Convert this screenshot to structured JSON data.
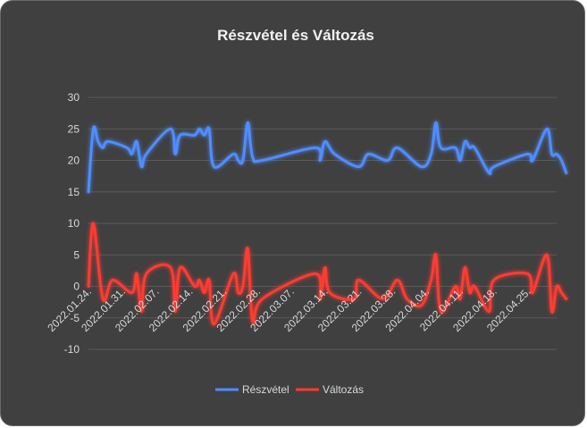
{
  "chart_data": {
    "type": "line",
    "title": "Részvétel és Változás",
    "xlabel": "",
    "ylabel": "",
    "ylim": [
      -10,
      30
    ],
    "y_ticks": [
      -10,
      -5,
      0,
      5,
      10,
      15,
      20,
      25,
      30
    ],
    "x_tick_labels": [
      "2022.01.24.",
      "2022.01.31.",
      "2022.02.07.",
      "2022.02.14.",
      "2022.02.21.",
      "2022.02.28.",
      "2022.03.07.",
      "2022.03.14.",
      "2022.03.21.",
      "2022.03.28.",
      "2022.04.04.",
      "2022.04.11.",
      "2022.04.18.",
      "2022.04.25."
    ],
    "x_start": "2022.01.24.",
    "x_end": "2022.05.01.",
    "grid": true,
    "legend": "bottom",
    "series": [
      {
        "name": "Részvétel",
        "color": "#4f8dff",
        "points": [
          [
            "2022.01.24.",
            15
          ],
          [
            "2022.01.25.",
            25
          ],
          [
            "2022.01.26.",
            23
          ],
          [
            "2022.01.27.",
            22
          ],
          [
            "2022.01.28.",
            23
          ],
          [
            "2022.02.01.",
            22
          ],
          [
            "2022.02.02.",
            21
          ],
          [
            "2022.02.03.",
            23
          ],
          [
            "2022.02.04.",
            19
          ],
          [
            "2022.02.05.",
            21
          ],
          [
            "2022.02.10.",
            25
          ],
          [
            "2022.02.11.",
            21
          ],
          [
            "2022.02.12.",
            24
          ],
          [
            "2022.02.15.",
            24
          ],
          [
            "2022.02.16.",
            25
          ],
          [
            "2022.02.17.",
            24
          ],
          [
            "2022.02.18.",
            25
          ],
          [
            "2022.02.19.",
            19
          ],
          [
            "2022.02.23.",
            21
          ],
          [
            "2022.02.24.",
            20
          ],
          [
            "2022.02.25.",
            20
          ],
          [
            "2022.02.26.",
            26
          ],
          [
            "2022.02.27.",
            20.5
          ],
          [
            "2022.03.01.",
            20
          ],
          [
            "2022.03.12.",
            22
          ],
          [
            "2022.03.13.",
            20
          ],
          [
            "2022.03.14.",
            23
          ],
          [
            "2022.03.16.",
            21
          ],
          [
            "2022.03.21.",
            19
          ],
          [
            "2022.03.23.",
            21
          ],
          [
            "2022.03.27.",
            20
          ],
          [
            "2022.03.29.",
            22
          ],
          [
            "2022.04.03.",
            19
          ],
          [
            "2022.04.05.",
            21
          ],
          [
            "2022.04.06.",
            26
          ],
          [
            "2022.04.07.",
            22
          ],
          [
            "2022.04.10.",
            22
          ],
          [
            "2022.04.11.",
            20
          ],
          [
            "2022.04.12.",
            23
          ],
          [
            "2022.04.13.",
            22
          ],
          [
            "2022.04.14.",
            22
          ],
          [
            "2022.04.17.",
            18
          ],
          [
            "2022.04.18.",
            19
          ],
          [
            "2022.04.25.",
            21
          ],
          [
            "2022.04.26.",
            20
          ],
          [
            "2022.04.29.",
            25
          ],
          [
            "2022.04.30.",
            21
          ],
          [
            "2022.05.01.",
            21
          ],
          [
            "2022.05.02.",
            20
          ],
          [
            "2022.05.03.",
            18
          ]
        ]
      },
      {
        "name": "Változás",
        "color": "#ff3b30",
        "points": [
          [
            "2022.01.24.",
            0
          ],
          [
            "2022.01.25.",
            10
          ],
          [
            "2022.01.27.",
            -2
          ],
          [
            "2022.01.29.",
            1
          ],
          [
            "2022.02.02.",
            -1
          ],
          [
            "2022.02.03.",
            2
          ],
          [
            "2022.02.04.",
            -4
          ],
          [
            "2022.02.05.",
            2
          ],
          [
            "2022.02.10.",
            3
          ],
          [
            "2022.02.11.",
            -4
          ],
          [
            "2022.02.12.",
            3
          ],
          [
            "2022.02.15.",
            0
          ],
          [
            "2022.02.16.",
            1
          ],
          [
            "2022.02.17.",
            -1
          ],
          [
            "2022.02.18.",
            1
          ],
          [
            "2022.02.19.",
            -6
          ],
          [
            "2022.02.23.",
            2
          ],
          [
            "2022.02.24.",
            -1
          ],
          [
            "2022.02.25.",
            0
          ],
          [
            "2022.02.26.",
            6
          ],
          [
            "2022.02.27.",
            -5.5
          ],
          [
            "2022.03.01.",
            -2
          ],
          [
            "2022.03.12.",
            2
          ],
          [
            "2022.03.13.",
            -2
          ],
          [
            "2022.03.14.",
            3
          ],
          [
            "2022.03.15.",
            -1
          ],
          [
            "2022.03.20.",
            -2
          ],
          [
            "2022.03.21.",
            1
          ],
          [
            "2022.03.26.",
            -2
          ],
          [
            "2022.03.29.",
            1
          ],
          [
            "2022.03.31.",
            -2
          ],
          [
            "2022.04.03.",
            -3
          ],
          [
            "2022.04.05.",
            1
          ],
          [
            "2022.04.06.",
            5
          ],
          [
            "2022.04.07.",
            -4
          ],
          [
            "2022.04.10.",
            0
          ],
          [
            "2022.04.11.",
            -2
          ],
          [
            "2022.04.12.",
            3
          ],
          [
            "2022.04.13.",
            -1
          ],
          [
            "2022.04.14.",
            0
          ],
          [
            "2022.04.17.",
            -4
          ],
          [
            "2022.04.18.",
            1
          ],
          [
            "2022.04.25.",
            2
          ],
          [
            "2022.04.26.",
            -1
          ],
          [
            "2022.04.29.",
            5
          ],
          [
            "2022.04.30.",
            -4
          ],
          [
            "2022.05.01.",
            0
          ],
          [
            "2022.05.02.",
            -1
          ],
          [
            "2022.05.03.",
            -2
          ]
        ]
      }
    ]
  }
}
